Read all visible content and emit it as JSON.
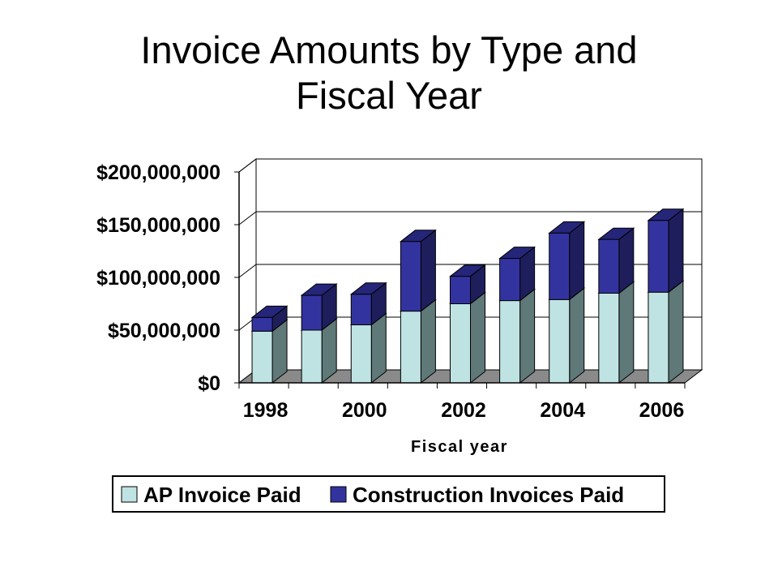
{
  "title": {
    "line1": "Invoice Amounts by Type and",
    "line2": "Fiscal Year"
  },
  "chart_data": {
    "type": "bar",
    "stacked": true,
    "three_d": true,
    "title": "Invoice Amounts by Type and Fiscal Year",
    "xlabel": "Fiscal year",
    "ylabel": "",
    "categories": [
      "1998",
      "1999",
      "2000",
      "2001",
      "2002",
      "2003",
      "2004",
      "2005",
      "2006"
    ],
    "x_tick_labels": [
      "1998",
      "",
      "2000",
      "",
      "2002",
      "",
      "2004",
      "",
      "2006"
    ],
    "y_tick_labels": [
      "$0",
      "$50,000,000",
      "$100,000,000",
      "$150,000,000",
      "$200,000,000"
    ],
    "ylim": [
      0,
      200000000
    ],
    "grid": true,
    "legend_position": "bottom",
    "series": [
      {
        "name": "AP Invoice Paid",
        "color": "#bfe3e3",
        "side_color": "#5f7878",
        "top_color": "#8fb0b0",
        "values": [
          49000000,
          50000000,
          55000000,
          68000000,
          75000000,
          78000000,
          79000000,
          85000000,
          86000000
        ]
      },
      {
        "name": "Construction Invoices Paid",
        "color": "#3333a0",
        "side_color": "#1e1e5c",
        "top_color": "#25257a",
        "values": [
          13000000,
          33000000,
          29000000,
          66000000,
          26000000,
          40000000,
          63000000,
          51000000,
          68000000
        ]
      }
    ],
    "colors": {
      "back_wall": "#ffffff",
      "floor": "#8a8a8a",
      "gridline": "#000000"
    }
  }
}
